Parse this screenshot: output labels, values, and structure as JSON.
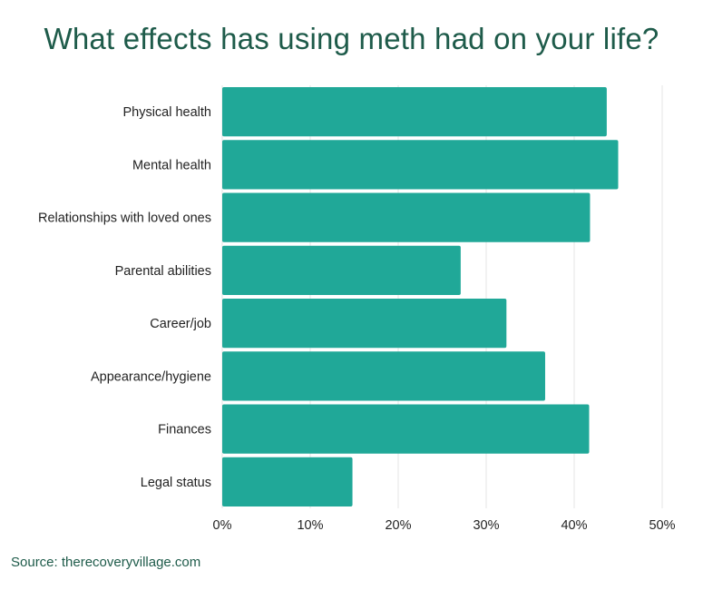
{
  "chart_data": {
    "type": "bar",
    "orientation": "horizontal",
    "title": "What effects has using meth had on your life?",
    "categories": [
      "Physical health",
      "Mental health",
      "Relationships with loved ones",
      "Parental abilities",
      "Career/job",
      "Appearance/hygiene",
      "Finances",
      "Legal status"
    ],
    "values": [
      43.7,
      45.0,
      41.8,
      27.1,
      32.3,
      36.7,
      41.7,
      14.8
    ],
    "xlim": [
      0,
      50
    ],
    "xticks": [
      0,
      10,
      20,
      30,
      40,
      50
    ],
    "tick_labels": [
      "0%",
      "10%",
      "20%",
      "30%",
      "40%",
      "50%"
    ],
    "xlabel": "",
    "ylabel": "",
    "grid": true,
    "bar_color": "#20a898",
    "grid_color": "#e6e6e6"
  },
  "source": "Source: therecoveryvillage.com"
}
